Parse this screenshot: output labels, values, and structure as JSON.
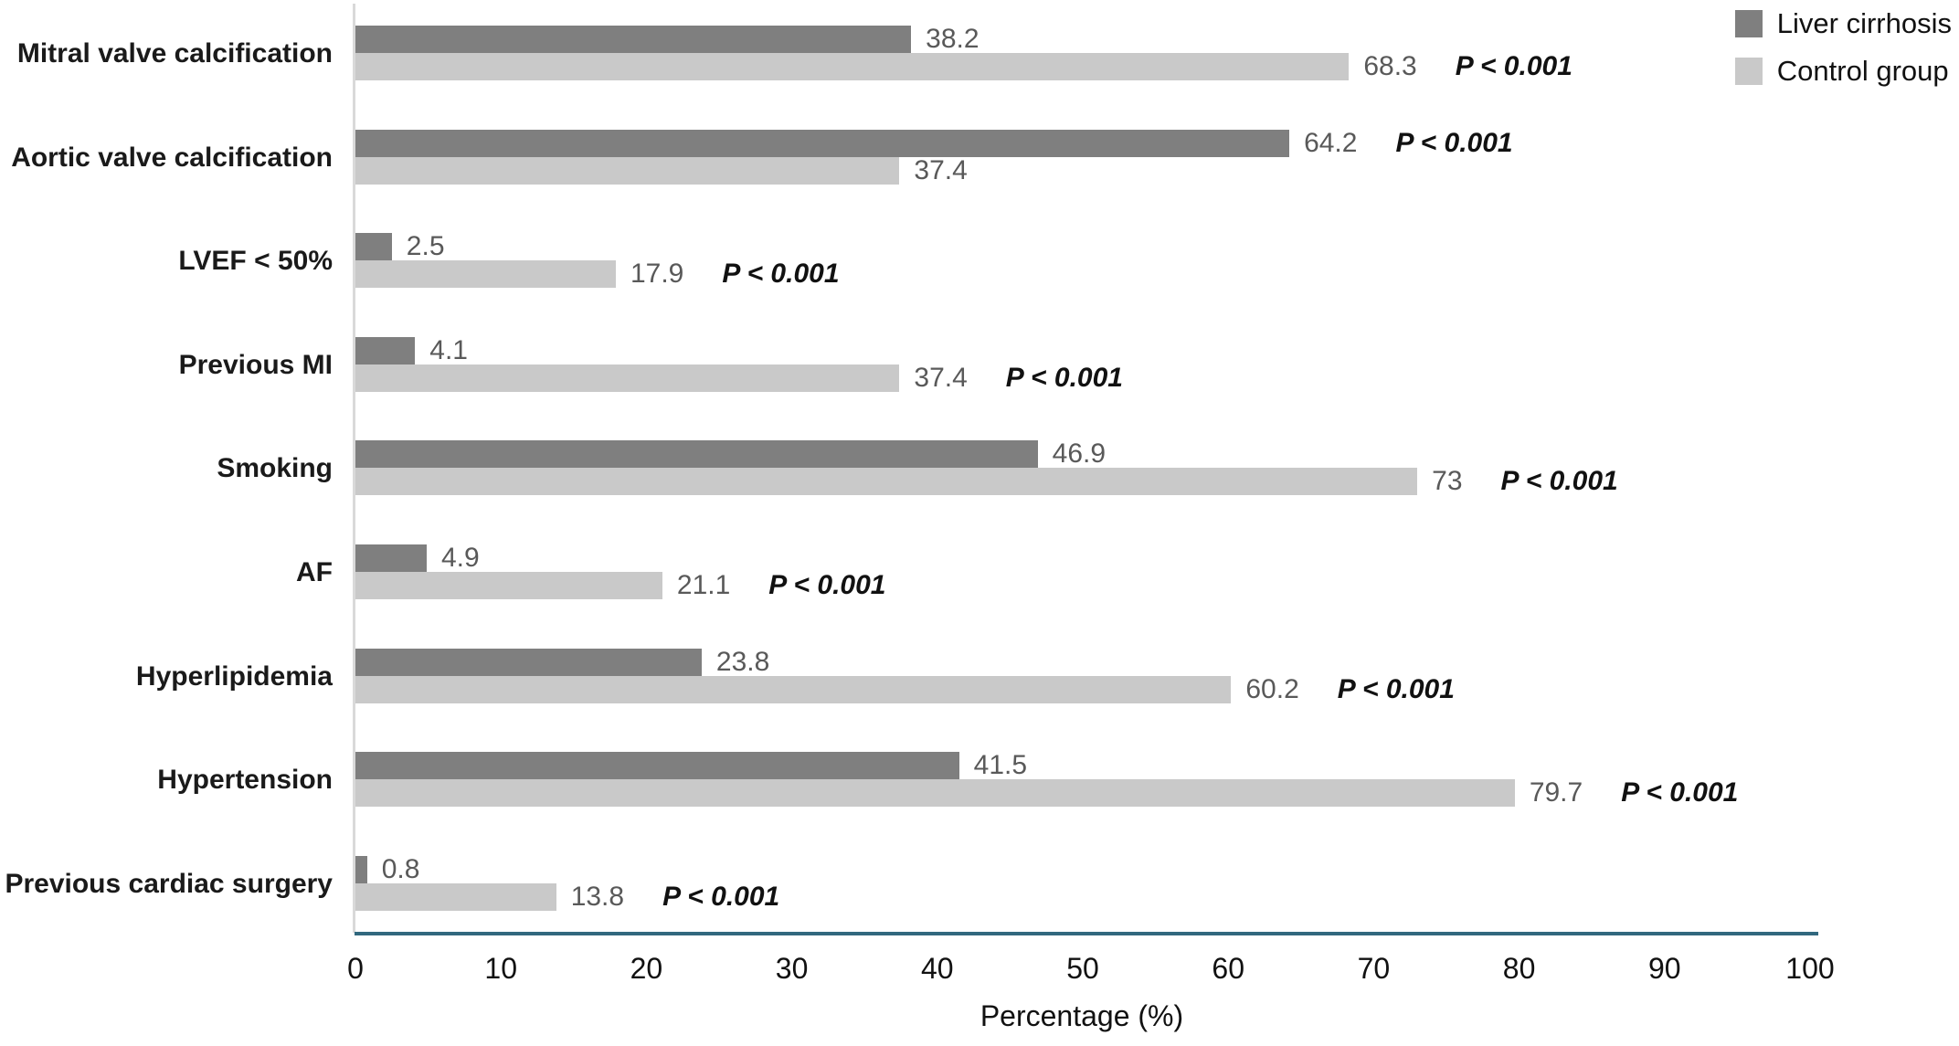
{
  "chart_data": {
    "type": "bar",
    "orientation": "horizontal",
    "title": "",
    "xlabel": "Percentage (%)",
    "ylabel": "",
    "xlim": [
      0,
      100
    ],
    "x_ticks": [
      "0",
      "10",
      "20",
      "30",
      "40",
      "50",
      "60",
      "70",
      "80",
      "90",
      "100"
    ],
    "grid": false,
    "legend_position": "top-right",
    "categories": [
      "Mitral valve calcification",
      "Aortic valve calcification",
      "LVEF <  50%",
      "Previous MI",
      "Smoking",
      "AF",
      "Hyperlipidemia",
      "Hypertension",
      "Previous cardiac surgery"
    ],
    "series": [
      {
        "name": "Liver cirrhosis",
        "color": "#7f7f7f",
        "values": [
          38.2,
          64.2,
          2.5,
          4.1,
          46.9,
          4.9,
          23.8,
          41.5,
          0.8
        ],
        "labels": [
          "38.2",
          "64.2",
          "2.5",
          "4.1",
          "46.9",
          "4.9",
          "23.8",
          "41.5",
          "0.8"
        ]
      },
      {
        "name": "Control group",
        "color": "#c9c9c9",
        "values": [
          68.3,
          37.4,
          17.9,
          37.4,
          73,
          21.1,
          60.2,
          79.7,
          13.8
        ],
        "labels": [
          "68.3",
          "37.4",
          "17.9",
          "37.4",
          "73",
          "21.1",
          "60.2",
          "79.7",
          "13.8"
        ]
      }
    ],
    "p_values": [
      "P < 0.001",
      "P < 0.001",
      "P < 0.001",
      "P < 0.001",
      "P < 0.001",
      "P < 0.001",
      "P < 0.001",
      "P < 0.001",
      "P < 0.001"
    ],
    "colors": {
      "series_dark": "#7f7f7f",
      "series_light": "#c9c9c9",
      "value_label": "#595959",
      "p_value": "#111111",
      "x_axis_line": "#31687e",
      "y_axis_line": "#d9d9d9"
    }
  }
}
